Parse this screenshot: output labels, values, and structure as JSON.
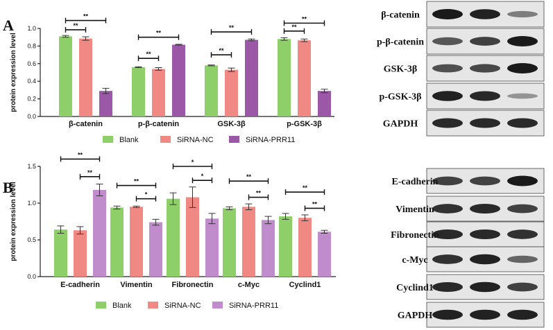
{
  "colors": {
    "blank": "#8fcf6a",
    "sirna_nc": "#f08884",
    "sirna_prr11_a": "#9b58a6",
    "sirna_prr11_b": "#c08ccb",
    "blot_bg": "#e6e6e6",
    "band": "#1a1a1a"
  },
  "chart_data": [
    {
      "panel": "A",
      "type": "bar",
      "ylabel": "protein expression level",
      "ylim": [
        0,
        1.0
      ],
      "yticks": [
        "0.0",
        "0.2",
        "0.4",
        "0.6",
        "0.8",
        "1.0"
      ],
      "categories": [
        "β-catenin",
        "p-β-catenin",
        "GSK-3β",
        "p-GSK-3β"
      ],
      "series": [
        {
          "name": "Blank",
          "values": [
            0.91,
            0.56,
            0.58,
            0.88
          ],
          "errors": [
            0.01,
            0.005,
            0.005,
            0.015
          ]
        },
        {
          "name": "SiRNA-NC",
          "values": [
            0.885,
            0.54,
            0.53,
            0.865
          ],
          "errors": [
            0.02,
            0.015,
            0.02,
            0.015
          ]
        },
        {
          "name": "SiRNA-PRR11",
          "values": [
            0.29,
            0.815,
            0.87,
            0.29
          ],
          "errors": [
            0.03,
            0.005,
            0.01,
            0.02
          ]
        }
      ],
      "significance": [
        {
          "cat": 0,
          "from": 0,
          "to": 1,
          "level": 0.985,
          "label": "**"
        },
        {
          "cat": 0,
          "from": 0,
          "to": 2,
          "level": 1.09,
          "label": "**"
        },
        {
          "cat": 1,
          "from": 0,
          "to": 1,
          "level": 0.66,
          "label": "**"
        },
        {
          "cat": 1,
          "from": 0,
          "to": 2,
          "level": 0.9,
          "label": "**"
        },
        {
          "cat": 2,
          "from": 0,
          "to": 1,
          "level": 0.7,
          "label": "**"
        },
        {
          "cat": 2,
          "from": 0,
          "to": 2,
          "level": 0.96,
          "label": "**"
        },
        {
          "cat": 3,
          "from": 0,
          "to": 1,
          "level": 0.97,
          "label": "**"
        },
        {
          "cat": 3,
          "from": 0,
          "to": 2,
          "level": 1.06,
          "label": "**"
        }
      ],
      "legend": [
        "Blank",
        "SiRNA-NC",
        "SiRNA-PRR11"
      ]
    },
    {
      "panel": "B",
      "type": "bar",
      "ylabel": "protein expression level",
      "ylim": [
        0,
        1.5
      ],
      "yticks": [
        "0.0",
        "0.5",
        "1.0",
        "1.5"
      ],
      "categories": [
        "E-cadherin",
        "Vimentin",
        "Fibronectin",
        "c-Myc",
        "Cyclind1"
      ],
      "series": [
        {
          "name": "Blank",
          "values": [
            0.64,
            0.94,
            1.06,
            0.93,
            0.82
          ],
          "errors": [
            0.05,
            0.02,
            0.08,
            0.02,
            0.04
          ]
        },
        {
          "name": "SiRNA-NC",
          "values": [
            0.63,
            0.95,
            1.08,
            0.95,
            0.8
          ],
          "errors": [
            0.05,
            0.01,
            0.14,
            0.04,
            0.04
          ]
        },
        {
          "name": "SiRNA-PRR11",
          "values": [
            1.18,
            0.74,
            0.79,
            0.77,
            0.61
          ],
          "errors": [
            0.08,
            0.04,
            0.07,
            0.05,
            0.02
          ]
        }
      ],
      "significance": [
        {
          "cat": 0,
          "from": 0,
          "to": 2,
          "level": 1.6,
          "label": "**"
        },
        {
          "cat": 0,
          "from": 1,
          "to": 2,
          "level": 1.36,
          "label": "**"
        },
        {
          "cat": 1,
          "from": 0,
          "to": 2,
          "level": 1.24,
          "label": "**"
        },
        {
          "cat": 1,
          "from": 1,
          "to": 2,
          "level": 1.06,
          "label": "*"
        },
        {
          "cat": 2,
          "from": 0,
          "to": 2,
          "level": 1.5,
          "label": "*"
        },
        {
          "cat": 2,
          "from": 1,
          "to": 2,
          "level": 1.31,
          "label": "*"
        },
        {
          "cat": 3,
          "from": 0,
          "to": 2,
          "level": 1.3,
          "label": "**"
        },
        {
          "cat": 3,
          "from": 1,
          "to": 2,
          "level": 1.08,
          "label": "**"
        },
        {
          "cat": 4,
          "from": 0,
          "to": 2,
          "level": 1.15,
          "label": "**"
        },
        {
          "cat": 4,
          "from": 1,
          "to": 2,
          "level": 0.93,
          "label": "**"
        }
      ],
      "legend": [
        "Blank",
        "SiRNA-NC",
        "SiRNA-PRR11"
      ]
    }
  ],
  "blots": [
    {
      "panel": "A",
      "rows": [
        {
          "label": "β-catenin",
          "intensity": [
            1.0,
            0.95,
            0.35
          ]
        },
        {
          "label": "p-β-catenin",
          "intensity": [
            0.6,
            0.75,
            1.0
          ]
        },
        {
          "label": "GSK-3β",
          "intensity": [
            0.65,
            0.7,
            1.0
          ]
        },
        {
          "label": "p-GSK-3β",
          "intensity": [
            0.95,
            0.9,
            0.2
          ]
        },
        {
          "label": "GAPDH",
          "intensity": [
            0.9,
            0.9,
            0.9
          ]
        }
      ]
    },
    {
      "panel": "B",
      "rows": [
        {
          "label": "E-cadherin",
          "intensity": [
            0.75,
            0.75,
            1.0
          ]
        },
        {
          "label": "Vimentin",
          "intensity": [
            0.85,
            0.9,
            0.75
          ]
        },
        {
          "label": "Fibronectin",
          "intensity": [
            0.9,
            0.9,
            0.85
          ]
        },
        {
          "label": "c-Myc",
          "intensity": [
            0.85,
            0.95,
            0.5
          ]
        },
        {
          "label": "Cyclind1",
          "intensity": [
            0.9,
            0.95,
            0.75
          ]
        },
        {
          "label": "GAPDH",
          "intensity": [
            0.95,
            0.95,
            0.95
          ]
        }
      ]
    }
  ],
  "panel_letters": [
    "A",
    "B"
  ]
}
